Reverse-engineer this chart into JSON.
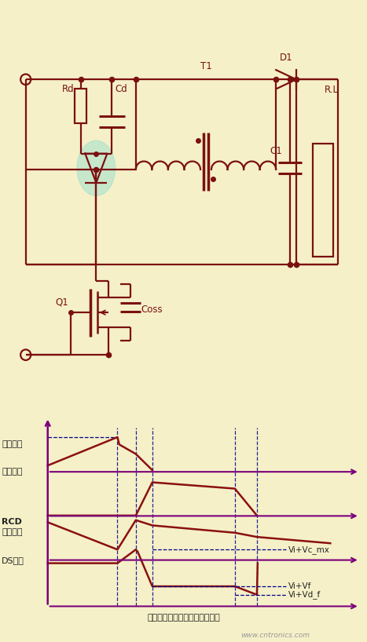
{
  "bg_color": "#f5f0c8",
  "cc": "#7b1010",
  "pc": "#8b1010",
  "ac": "#7b007b",
  "dc": "#00008b",
  "label_chu": "初级电流",
  "label_ci": "次级电流",
  "label_rcd": "RCD",
  "label_rcd2": "电容电压",
  "label_ds": "DS电压",
  "label_vi_vc": "Vi+Vc_mx",
  "label_vi_vf": "Vi+Vf",
  "label_vi_vd": "Vi+Vd_f",
  "title_bottom": "这个过程中非常有可能出现震荡",
  "watermark": "www.cntronics.com",
  "circuit_xlim": [
    0,
    10
  ],
  "circuit_ylim": [
    0,
    8
  ],
  "wave_xlim": [
    0,
    10
  ],
  "wave_ylim": [
    0,
    10
  ]
}
